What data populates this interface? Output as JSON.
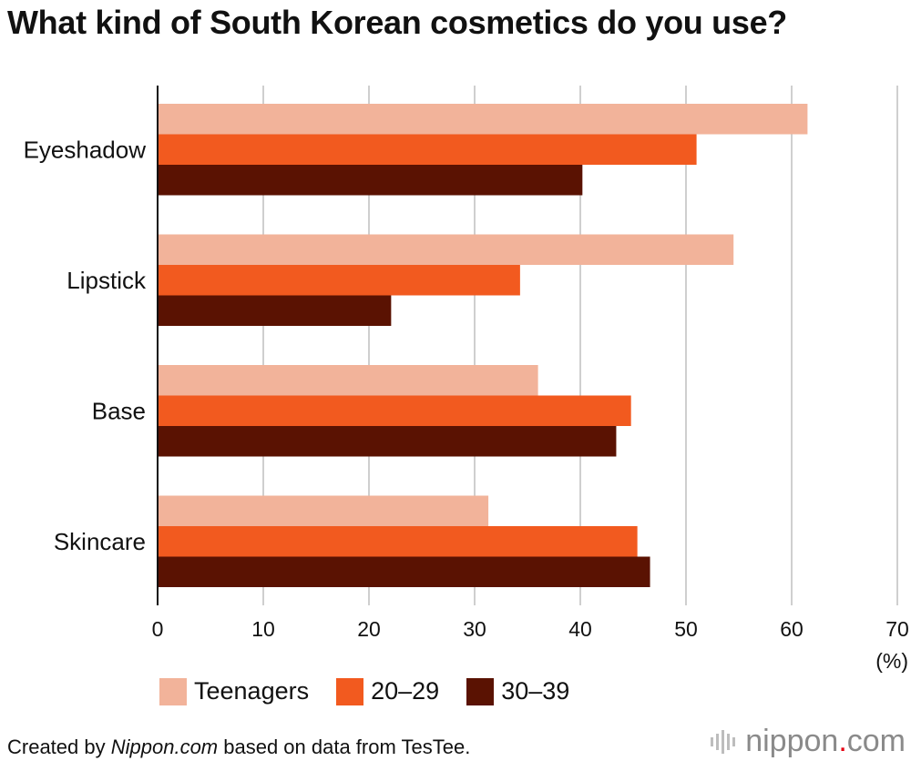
{
  "title": "What kind of South Korean cosmetics do you use?",
  "chart_data": {
    "type": "bar",
    "orientation": "horizontal",
    "categories": [
      "Eyeshadow",
      "Lipstick",
      "Base",
      "Skincare"
    ],
    "series": [
      {
        "name": "Teenagers",
        "color": "#f2b39a",
        "values": [
          61.5,
          54.5,
          36.0,
          31.3
        ]
      },
      {
        "name": "20–29",
        "color": "#f25a1f",
        "values": [
          51.0,
          34.3,
          44.8,
          45.4
        ]
      },
      {
        "name": "30–39",
        "color": "#5a1202",
        "values": [
          40.2,
          22.1,
          43.4,
          46.6
        ]
      }
    ],
    "xlim": [
      0,
      70
    ],
    "xticks": [
      "0",
      "10",
      "20",
      "30",
      "40",
      "50",
      "60",
      "70"
    ],
    "xunit": "(%)",
    "grid": true,
    "legend_position": "bottom"
  },
  "footer": {
    "prefix": "Created by ",
    "source": "Nippon.com",
    "suffix": " based on data from TesTee."
  },
  "brand": {
    "name": "nippon",
    "dot": ".",
    "tld": "com",
    "icon": "sound-bars-icon",
    "accent": "#e60012"
  }
}
